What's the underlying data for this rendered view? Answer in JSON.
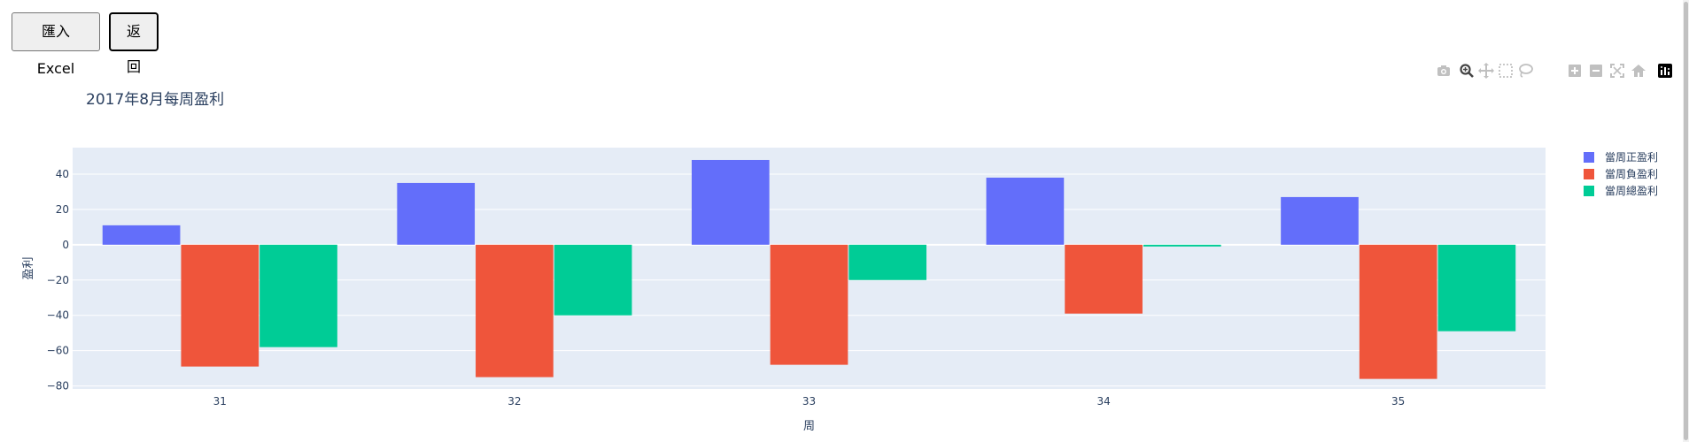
{
  "toolbar": {
    "import_label": "匯入 Excel",
    "back_label": "返回"
  },
  "modebar": {
    "icons": [
      "camera-icon",
      "zoom-icon",
      "pan-icon",
      "box-select-icon",
      "lasso-select-icon",
      "zoom-in-icon",
      "zoom-out-icon",
      "autoscale-icon",
      "reset-axes-icon",
      "plotly-logo-icon"
    ]
  },
  "colors": {
    "plot_bg": "#e5ecf6",
    "grid": "#ffffff",
    "text": "#2a3f5f",
    "series": [
      "#636efa",
      "#ef553b",
      "#00cc96"
    ]
  },
  "chart_data": {
    "type": "bar",
    "title": "2017年8月每周盈利",
    "xlabel": "周",
    "ylabel": "盈利",
    "categories": [
      "31",
      "32",
      "33",
      "34",
      "35"
    ],
    "series": [
      {
        "name": "當周正盈利",
        "values": [
          11,
          35,
          48,
          38,
          27
        ]
      },
      {
        "name": "當周負盈利",
        "values": [
          -69,
          -75,
          -68,
          -39,
          -76
        ]
      },
      {
        "name": "當周總盈利",
        "values": [
          -58,
          -40,
          -20,
          -1,
          -49
        ]
      }
    ],
    "ylim": [
      -81.7,
      55
    ],
    "yticks": [
      40,
      20,
      0,
      -20,
      -40,
      -60,
      -80
    ],
    "ytick_labels": [
      "40",
      "20",
      "0",
      "−20",
      "−40",
      "−60",
      "−80"
    ],
    "grid": true,
    "legend_position": "top-right"
  }
}
